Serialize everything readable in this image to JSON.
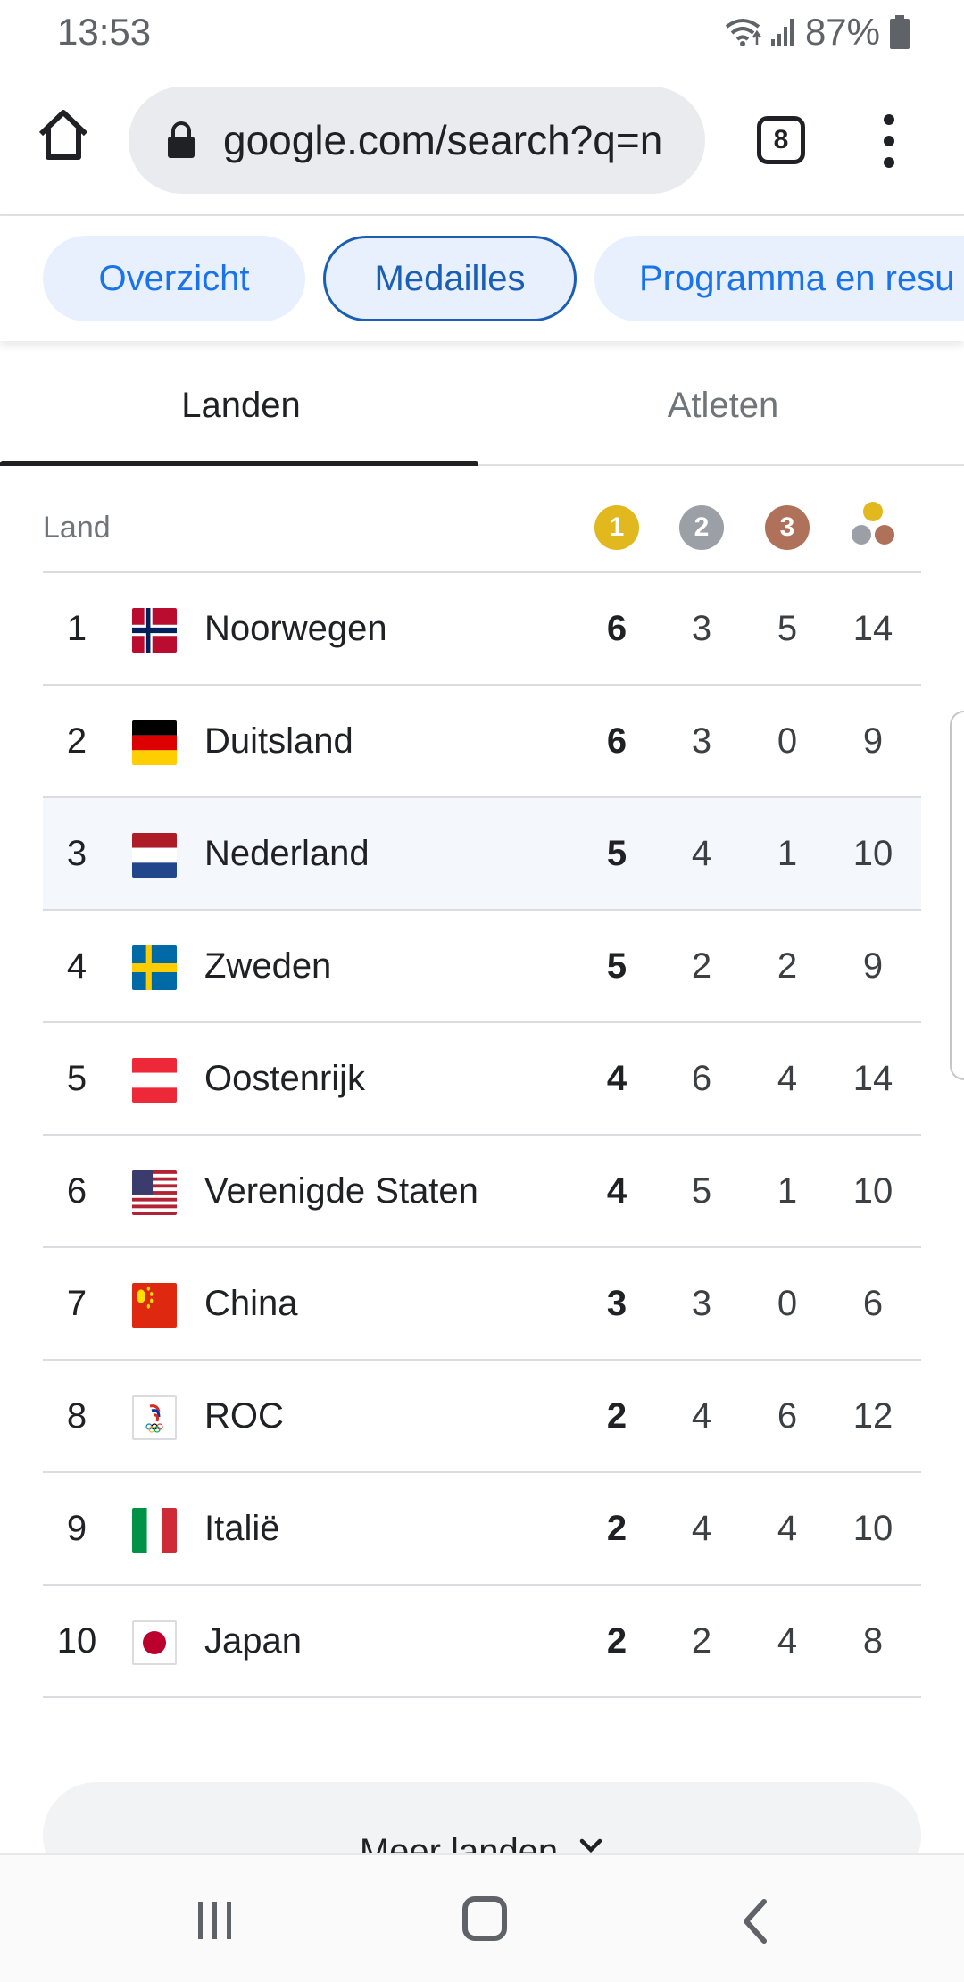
{
  "status_bar": {
    "time": "13:53",
    "battery": "87%",
    "icons": [
      "wifi-icon",
      "signal-icon",
      "battery-icon"
    ]
  },
  "browser": {
    "url": "google.com/search?q=n",
    "tab_count": "8"
  },
  "chips": [
    "Overzicht",
    "Medailles",
    "Programma en resu"
  ],
  "segment_tabs": {
    "active": "Landen",
    "inactive": "Atleten"
  },
  "table": {
    "header_land": "Land",
    "medals": {
      "gold": "1",
      "silver": "2",
      "bronze": "3"
    },
    "rows": [
      {
        "rank": "1",
        "country": "Noorwegen",
        "flag": "norway",
        "gold": "6",
        "silver": "3",
        "bronze": "5",
        "total": "14"
      },
      {
        "rank": "2",
        "country": "Duitsland",
        "flag": "germany",
        "gold": "6",
        "silver": "3",
        "bronze": "0",
        "total": "9"
      },
      {
        "rank": "3",
        "country": "Nederland",
        "flag": "netherlands",
        "gold": "5",
        "silver": "4",
        "bronze": "1",
        "total": "10"
      },
      {
        "rank": "4",
        "country": "Zweden",
        "flag": "sweden",
        "gold": "5",
        "silver": "2",
        "bronze": "2",
        "total": "9"
      },
      {
        "rank": "5",
        "country": "Oostenrijk",
        "flag": "austria",
        "gold": "4",
        "silver": "6",
        "bronze": "4",
        "total": "14"
      },
      {
        "rank": "6",
        "country": "Verenigde Staten",
        "flag": "usa",
        "gold": "4",
        "silver": "5",
        "bronze": "1",
        "total": "10"
      },
      {
        "rank": "7",
        "country": "China",
        "flag": "china",
        "gold": "3",
        "silver": "3",
        "bronze": "0",
        "total": "6"
      },
      {
        "rank": "8",
        "country": "ROC",
        "flag": "roc",
        "gold": "2",
        "silver": "4",
        "bronze": "6",
        "total": "12"
      },
      {
        "rank": "9",
        "country": "Italië",
        "flag": "italy",
        "gold": "2",
        "silver": "4",
        "bronze": "4",
        "total": "10"
      },
      {
        "rank": "10",
        "country": "Japan",
        "flag": "japan",
        "gold": "2",
        "silver": "2",
        "bronze": "4",
        "total": "8"
      }
    ]
  },
  "more_button": "Meer landen",
  "colors": {
    "gold": "#e1b81d",
    "silver": "#9aa0a6",
    "bronze": "#b0715a",
    "accent": "#1a73e8"
  }
}
